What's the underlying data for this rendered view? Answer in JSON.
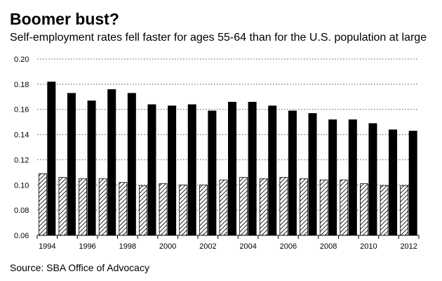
{
  "title": "Boomer bust?",
  "subtitle": "Self-employment rates fell faster for ages 55-64 than for the U.S. population at large",
  "source": "Source: SBA Office of Advocacy",
  "colors": {
    "ages_55_64": "#000000",
    "us_population": "#ffffff",
    "gridline": "#555555"
  },
  "chart_data": {
    "type": "bar",
    "title": "Boomer bust?",
    "xlabel": "",
    "ylabel": "",
    "ylim": [
      0.06,
      0.2
    ],
    "yticks": [
      "0.06",
      "0.08",
      "0.10",
      "0.12",
      "0.14",
      "0.16",
      "0.18",
      "0.20"
    ],
    "grid": true,
    "categories": [
      "1994",
      "1995",
      "1996",
      "1997",
      "1998",
      "1999",
      "2000",
      "2001",
      "2002",
      "2003",
      "2004",
      "2005",
      "2006",
      "2007",
      "2008",
      "2009",
      "2010",
      "2011",
      "2012"
    ],
    "xtick_labels": [
      "1994",
      "1996",
      "1998",
      "2000",
      "2002",
      "2004",
      "2006",
      "2008",
      "2010",
      "2012"
    ],
    "series": [
      {
        "name": "U.S. population",
        "fill": "hatched",
        "values": [
          0.109,
          0.106,
          0.105,
          0.105,
          0.102,
          0.0995,
          0.101,
          0.1,
          0.1,
          0.104,
          0.106,
          0.105,
          0.106,
          0.105,
          0.104,
          0.104,
          0.101,
          0.0995,
          0.0995
        ]
      },
      {
        "name": "Ages 55-64",
        "fill": "solid",
        "values": [
          0.182,
          0.173,
          0.167,
          0.176,
          0.173,
          0.164,
          0.163,
          0.164,
          0.159,
          0.166,
          0.166,
          0.163,
          0.159,
          0.157,
          0.152,
          0.152,
          0.149,
          0.144,
          0.143
        ]
      }
    ]
  }
}
